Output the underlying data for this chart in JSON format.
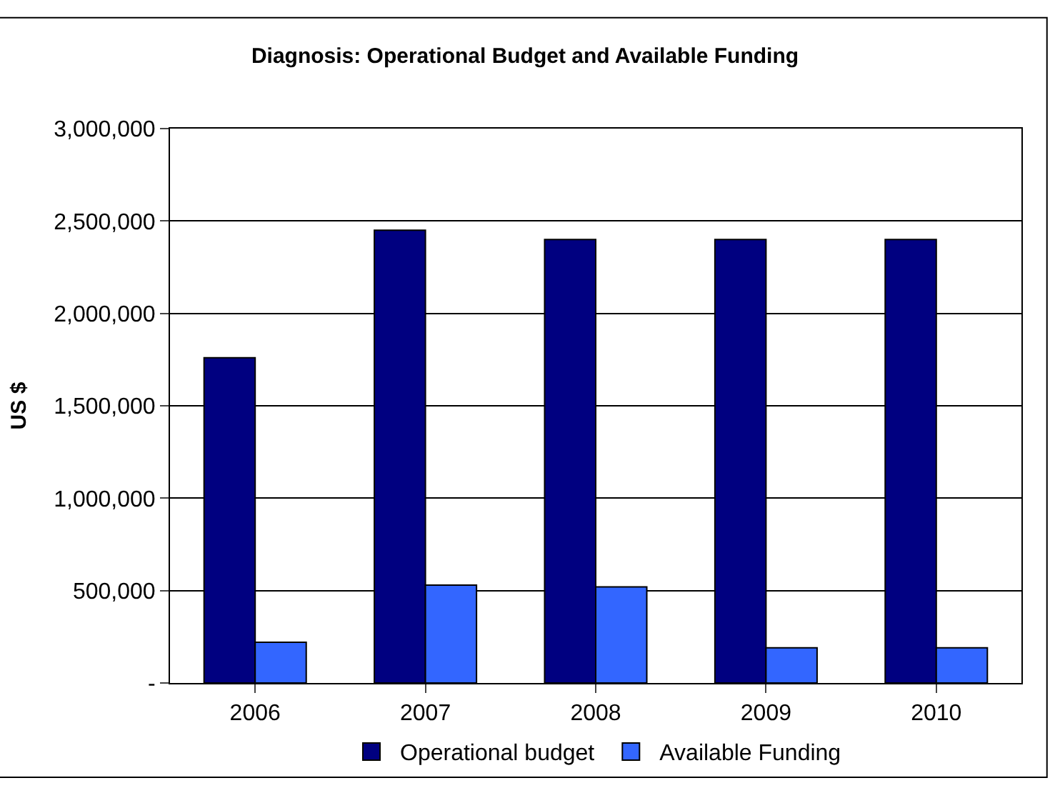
{
  "chart_data": {
    "type": "bar",
    "title": "Diagnosis: Operational Budget and Available Funding",
    "ylabel": "US $",
    "categories": [
      "2006",
      "2007",
      "2008",
      "2009",
      "2010"
    ],
    "series": [
      {
        "name": "Operational budget",
        "color": "#000080",
        "values": [
          1760000,
          2450000,
          2400000,
          2400000,
          2400000
        ]
      },
      {
        "name": "Available Funding",
        "color": "#3366ff",
        "values": [
          220000,
          530000,
          520000,
          190000,
          190000
        ]
      }
    ],
    "ylim": [
      0,
      3000000
    ],
    "yticks": [
      {
        "value": 0,
        "label": "-"
      },
      {
        "value": 500000,
        "label": "500,000"
      },
      {
        "value": 1000000,
        "label": "1,000,000"
      },
      {
        "value": 1500000,
        "label": "1,500,000"
      },
      {
        "value": 2000000,
        "label": "2,000,000"
      },
      {
        "value": 2500000,
        "label": "2,500,000"
      },
      {
        "value": 3000000,
        "label": "3,000,000"
      }
    ],
    "grid": "y",
    "legend": "bottom"
  }
}
